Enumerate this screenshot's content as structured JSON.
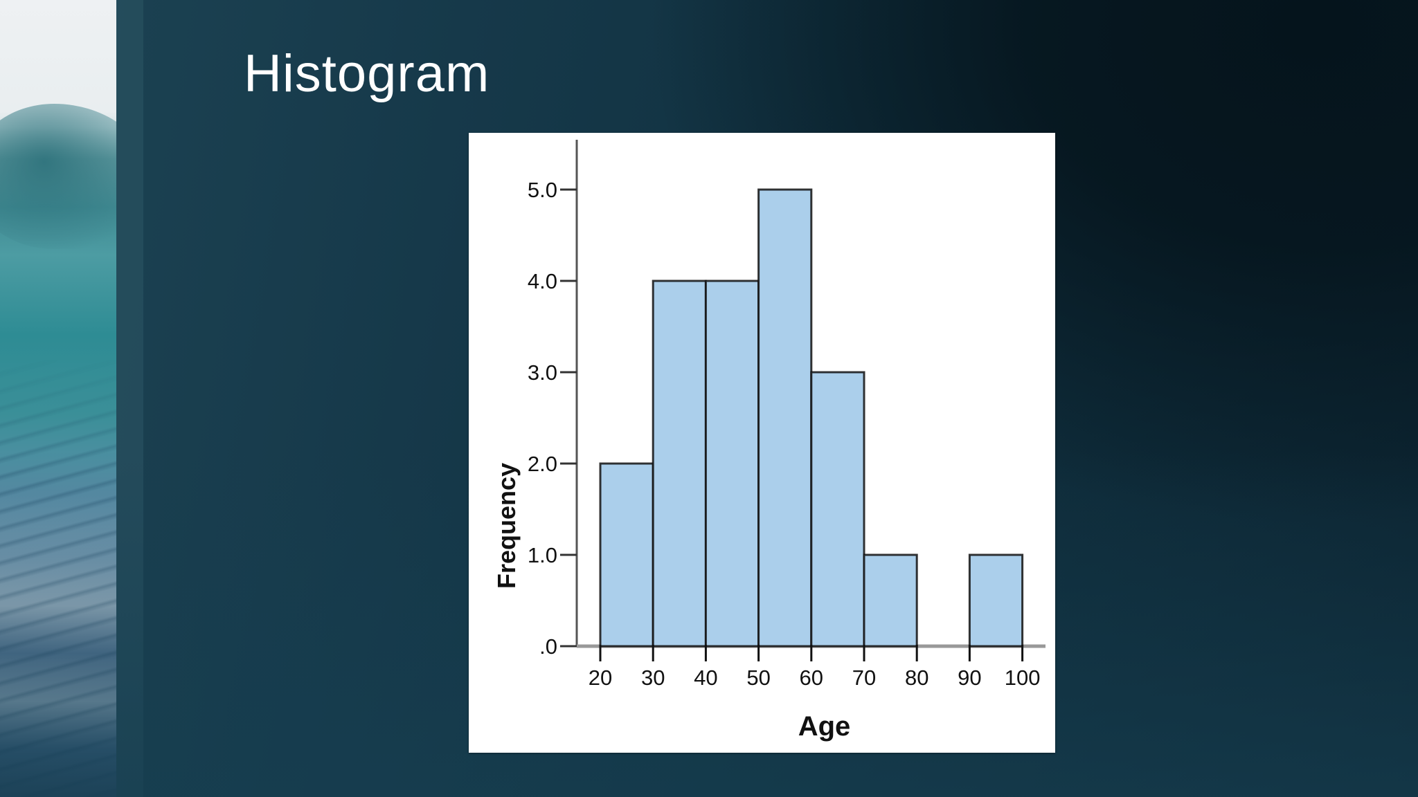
{
  "slide": {
    "title": "Histogram"
  },
  "colors": {
    "bar_fill": "#abcfeb",
    "bar_stroke": "#111111",
    "axis": "#555555",
    "baseline": "#999999",
    "panel_bg": "#ffffff",
    "title_text": "#ffffff"
  },
  "chart_data": {
    "type": "bar",
    "subtype": "histogram",
    "title": "",
    "xlabel": "Age",
    "ylabel": "Frequency",
    "bins": [
      {
        "start": 20,
        "end": 30,
        "value": 2
      },
      {
        "start": 30,
        "end": 40,
        "value": 4
      },
      {
        "start": 40,
        "end": 50,
        "value": 4
      },
      {
        "start": 50,
        "end": 60,
        "value": 5
      },
      {
        "start": 60,
        "end": 70,
        "value": 3
      },
      {
        "start": 70,
        "end": 80,
        "value": 1
      },
      {
        "start": 80,
        "end": 90,
        "value": 0
      },
      {
        "start": 90,
        "end": 100,
        "value": 1
      }
    ],
    "categories": [
      "20-30",
      "30-40",
      "40-50",
      "50-60",
      "60-70",
      "70-80",
      "80-90",
      "90-100"
    ],
    "values": [
      2,
      4,
      4,
      5,
      3,
      1,
      0,
      1
    ],
    "x_ticks": [
      "20",
      "30",
      "40",
      "50",
      "60",
      "70",
      "80",
      "90",
      "100"
    ],
    "y_ticks": [
      ".0",
      "1.0",
      "2.0",
      "3.0",
      "4.0",
      "5.0"
    ],
    "y_tick_values": [
      0,
      1,
      2,
      3,
      4,
      5
    ],
    "xlim": [
      20,
      100
    ],
    "ylim": [
      0,
      5.5
    ],
    "grid": false,
    "legend": null
  }
}
